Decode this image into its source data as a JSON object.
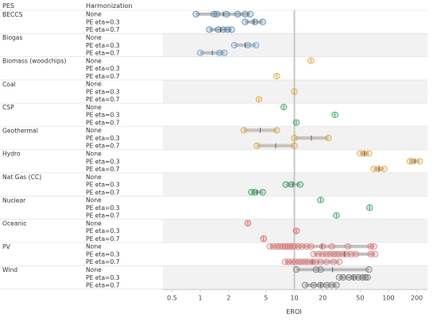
{
  "chart_data": {
    "type": "scatter",
    "x_scale": "log",
    "xlim": [
      0.4,
      260
    ],
    "xlabel": "EROI",
    "column_headers": [
      "PES",
      "Harmonization"
    ],
    "x_ticks": [
      0.5,
      1,
      2,
      5,
      10,
      20,
      50,
      100,
      200
    ],
    "x_tick_labels": [
      "0.5",
      "1",
      "2",
      "5",
      "10",
      "20",
      "50",
      "100",
      "200"
    ],
    "reference_line": 10,
    "harmonization_levels": [
      "None",
      "PE eta=0.3",
      "PE eta=0.7"
    ],
    "groups": [
      {
        "name": "BECCS",
        "color": "#4f7fa8",
        "rows": [
          {
            "level": "None",
            "points": [
              0.9,
              1.4,
              1.5,
              1.9,
              2.5,
              3.0,
              3.4
            ]
          },
          {
            "level": "PE eta=0.3",
            "points": [
              3.0,
              3.8,
              4.6
            ]
          },
          {
            "level": "PE eta=0.7",
            "points": [
              1.25,
              1.55,
              1.75,
              1.95,
              2.15
            ]
          }
        ]
      },
      {
        "name": "Biogas",
        "color": "#6b9bc7",
        "rows": [
          {
            "level": "None",
            "points": []
          },
          {
            "level": "PE eta=0.3",
            "points": [
              2.3,
              3.2,
              3.9
            ]
          },
          {
            "level": "PE eta=0.7",
            "points": [
              1.0,
              1.6,
              1.8
            ]
          }
        ]
      },
      {
        "name": "Biomass (woodchips)",
        "color": "#e0a33a",
        "rows": [
          {
            "level": "None",
            "points": [
              15
            ]
          },
          {
            "level": "PE eta=0.3",
            "points": []
          },
          {
            "level": "PE eta=0.7",
            "points": [
              6.5
            ]
          }
        ]
      },
      {
        "name": "Coal",
        "color": "#e0a33a",
        "rows": [
          {
            "level": "None",
            "points": []
          },
          {
            "level": "PE eta=0.3",
            "points": [
              10
            ]
          },
          {
            "level": "PE eta=0.7",
            "points": [
              4.2
            ]
          }
        ]
      },
      {
        "name": "CSP",
        "color": "#2e9a55",
        "rows": [
          {
            "level": "None",
            "points": [
              7.7
            ]
          },
          {
            "level": "PE eta=0.3",
            "points": [
              27
            ]
          },
          {
            "level": "PE eta=0.7",
            "points": [
              10.5
            ]
          }
        ]
      },
      {
        "name": "Geothermal",
        "color": "#e0a33a",
        "rows": [
          {
            "level": "None",
            "points": [
              2.9,
              6.5
            ]
          },
          {
            "level": "PE eta=0.3",
            "points": [
              10,
              23
            ]
          },
          {
            "level": "PE eta=0.7",
            "points": [
              4.0,
              10
            ]
          }
        ]
      },
      {
        "name": "Hydro",
        "color": "#e0a33a",
        "rows": [
          {
            "level": "None",
            "points": [
              50,
              55,
              62
            ]
          },
          {
            "level": "PE eta=0.3",
            "points": [
              170,
              180,
              215
            ]
          },
          {
            "level": "PE eta=0.7",
            "points": [
              70,
              78,
              90
            ]
          }
        ]
      },
      {
        "name": "Nat Gas (CC)",
        "color": "#2e9a55",
        "rows": [
          {
            "level": "None",
            "points": []
          },
          {
            "level": "PE eta=0.3",
            "points": [
              8.1,
              9.3,
              11.5
            ]
          },
          {
            "level": "PE eta=0.7",
            "points": [
              3.5,
              3.8,
              4.6
            ]
          }
        ]
      },
      {
        "name": "Nuclear",
        "color": "#2e9a55",
        "rows": [
          {
            "level": "None",
            "points": [
              19
            ]
          },
          {
            "level": "PE eta=0.3",
            "points": [
              63
            ]
          },
          {
            "level": "PE eta=0.7",
            "points": [
              28
            ]
          }
        ]
      },
      {
        "name": "Oceanic",
        "color": "#d9534f",
        "rows": [
          {
            "level": "None",
            "points": [
              3.2
            ]
          },
          {
            "level": "PE eta=0.3",
            "points": [
              10.5
            ]
          },
          {
            "level": "PE eta=0.7",
            "points": [
              4.7
            ]
          }
        ]
      },
      {
        "name": "PV",
        "color": "#e07a7a",
        "rows": [
          {
            "level": "None",
            "points": [
              5.5,
              6.0,
              6.5,
              7.0,
              7.5,
              8.0,
              8.5,
              9.0,
              9.5,
              10.0,
              11.0,
              12.0,
              13.5,
              15.0,
              20.0,
              25.0,
              37.0,
              65.0,
              70.0
            ]
          },
          {
            "level": "PE eta=0.3",
            "points": [
              16.0,
              18.0,
              20.0,
              22.0,
              24.0,
              26.0,
              28.0,
              30.0,
              33.0,
              36.0,
              40.0,
              45.0,
              65.0,
              72.0
            ]
          },
          {
            "level": "PE eta=0.7",
            "points": [
              8.0,
              8.7,
              9.5,
              10.3,
              11.2,
              12.0,
              13.0,
              14.0,
              15.5,
              17.0,
              19.0,
              22.0,
              26.0,
              30.0
            ]
          }
        ]
      },
      {
        "name": "Wind",
        "color": "#777777",
        "rows": [
          {
            "level": "None",
            "points": [
              10.5,
              17.0,
              19.0,
              62.0
            ]
          },
          {
            "level": "PE eta=0.3",
            "points": [
              30.0,
              33.0,
              38.0,
              43.0,
              48.0,
              53.0,
              57.0,
              60.0
            ]
          },
          {
            "level": "PE eta=0.7",
            "points": [
              13.0,
              16.0,
              19.0,
              22.0,
              25.0,
              28.0
            ]
          }
        ]
      }
    ]
  }
}
